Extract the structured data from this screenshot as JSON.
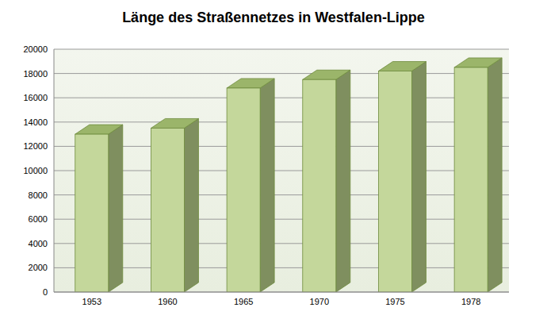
{
  "chart_data": {
    "type": "bar",
    "title": "Länge des Straßennetzes in Westfalen-Lippe",
    "categories": [
      "1953",
      "1960",
      "1965",
      "1970",
      "1975",
      "1978"
    ],
    "values": [
      13000,
      13500,
      16800,
      17500,
      18200,
      18500
    ],
    "color": "#c4d79b",
    "ylim": [
      0,
      20000
    ],
    "yticks": [
      0,
      2000,
      4000,
      6000,
      8000,
      10000,
      12000,
      14000,
      16000,
      18000,
      20000
    ],
    "grid": true
  }
}
